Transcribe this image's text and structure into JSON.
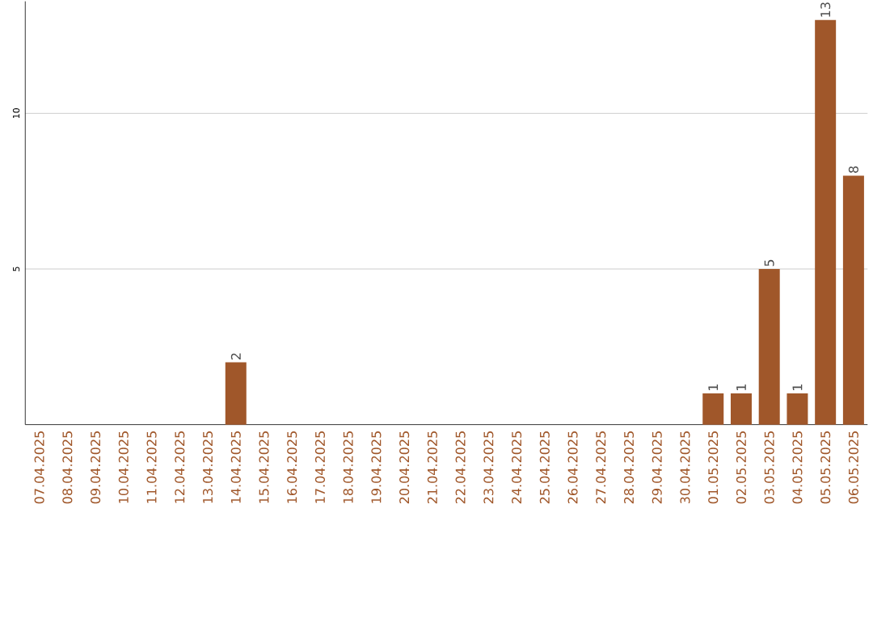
{
  "chart_data": {
    "type": "bar",
    "categories": [
      "07.04.2025",
      "08.04.2025",
      "09.04.2025",
      "10.04.2025",
      "11.04.2025",
      "12.04.2025",
      "13.04.2025",
      "14.04.2025",
      "15.04.2025",
      "16.04.2025",
      "17.04.2025",
      "18.04.2025",
      "19.04.2025",
      "20.04.2025",
      "21.04.2025",
      "22.04.2025",
      "23.04.2025",
      "24.04.2025",
      "25.04.2025",
      "26.04.2025",
      "27.04.2025",
      "28.04.2025",
      "29.04.2025",
      "30.04.2025",
      "01.05.2025",
      "02.05.2025",
      "03.05.2025",
      "04.05.2025",
      "05.05.2025",
      "06.05.2025"
    ],
    "values": [
      0,
      0,
      0,
      0,
      0,
      0,
      0,
      2,
      0,
      0,
      0,
      0,
      0,
      0,
      0,
      0,
      0,
      0,
      0,
      0,
      0,
      0,
      0,
      0,
      1,
      1,
      5,
      1,
      13,
      8
    ],
    "value_labels": [
      null,
      null,
      null,
      null,
      null,
      null,
      null,
      "2",
      null,
      null,
      null,
      null,
      null,
      null,
      null,
      null,
      null,
      null,
      null,
      null,
      null,
      null,
      null,
      null,
      "1",
      "1",
      "5",
      "1",
      "13",
      "8"
    ],
    "color": "#a0572a",
    "ylim": [
      0,
      13.6
    ],
    "yticks": [
      5,
      10
    ],
    "grid": "y"
  }
}
